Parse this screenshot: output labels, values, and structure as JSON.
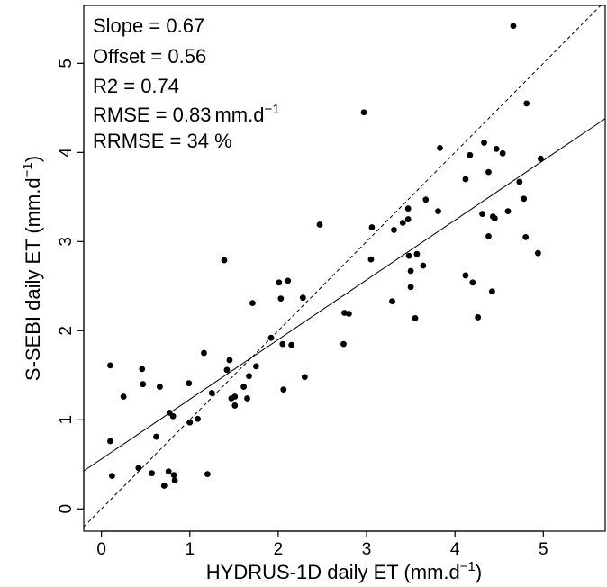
{
  "chart_data": {
    "type": "scatter",
    "xlabel": "HYDRUS-1D daily ET (mm.d",
    "xlabel_sup": "−1",
    "xlabel_tail": ")",
    "ylabel": "S-SEBI daily ET (mm.d",
    "ylabel_sup": "−1",
    "ylabel_tail": ")",
    "xlim": [
      -0.2,
      5.7
    ],
    "ylim": [
      -0.25,
      5.65
    ],
    "x_ticks": [
      "0",
      "1",
      "2",
      "3",
      "4",
      "5"
    ],
    "y_ticks": [
      "0",
      "1",
      "2",
      "3",
      "4",
      "5"
    ],
    "grid": false,
    "stats": {
      "slope": "Slope = 0.67",
      "offset": "Offset = 0.56",
      "r2": "R2 = 0.74",
      "rmse": "RMSE = 0.83",
      "rmse_unit": "mm.d",
      "rmse_sup": "−1",
      "rrmse": "RRMSE = 34 %"
    },
    "fit_line": {
      "slope": 0.67,
      "offset": 0.56,
      "style": "solid"
    },
    "one_to_one_line": {
      "slope": 1,
      "offset": 0,
      "style": "dashed"
    },
    "points": [
      {
        "x": 0.1,
        "y": 1.61
      },
      {
        "x": 0.1,
        "y": 0.76
      },
      {
        "x": 0.12,
        "y": 0.37
      },
      {
        "x": 0.25,
        "y": 1.26
      },
      {
        "x": 0.42,
        "y": 0.46
      },
      {
        "x": 0.46,
        "y": 1.57
      },
      {
        "x": 0.47,
        "y": 1.4
      },
      {
        "x": 0.57,
        "y": 0.4
      },
      {
        "x": 0.62,
        "y": 0.81
      },
      {
        "x": 0.66,
        "y": 1.37
      },
      {
        "x": 0.71,
        "y": 0.26
      },
      {
        "x": 0.76,
        "y": 0.42
      },
      {
        "x": 0.77,
        "y": 1.08
      },
      {
        "x": 0.81,
        "y": 1.04
      },
      {
        "x": 0.82,
        "y": 0.38
      },
      {
        "x": 0.83,
        "y": 0.32
      },
      {
        "x": 0.99,
        "y": 1.41
      },
      {
        "x": 1.0,
        "y": 0.97
      },
      {
        "x": 1.09,
        "y": 1.01
      },
      {
        "x": 1.16,
        "y": 1.75
      },
      {
        "x": 1.2,
        "y": 0.39
      },
      {
        "x": 1.25,
        "y": 1.3
      },
      {
        "x": 1.39,
        "y": 2.79
      },
      {
        "x": 1.42,
        "y": 1.56
      },
      {
        "x": 1.45,
        "y": 1.67
      },
      {
        "x": 1.47,
        "y": 1.24
      },
      {
        "x": 1.51,
        "y": 1.16
      },
      {
        "x": 1.51,
        "y": 1.26
      },
      {
        "x": 1.61,
        "y": 1.37
      },
      {
        "x": 1.65,
        "y": 1.24
      },
      {
        "x": 1.67,
        "y": 1.49
      },
      {
        "x": 1.71,
        "y": 2.31
      },
      {
        "x": 1.75,
        "y": 1.6
      },
      {
        "x": 1.92,
        "y": 1.92
      },
      {
        "x": 2.01,
        "y": 2.54
      },
      {
        "x": 2.03,
        "y": 2.36
      },
      {
        "x": 2.05,
        "y": 1.85
      },
      {
        "x": 2.06,
        "y": 1.34
      },
      {
        "x": 2.11,
        "y": 2.56
      },
      {
        "x": 2.15,
        "y": 1.84
      },
      {
        "x": 2.28,
        "y": 2.37
      },
      {
        "x": 2.3,
        "y": 1.48
      },
      {
        "x": 2.47,
        "y": 3.19
      },
      {
        "x": 2.74,
        "y": 1.85
      },
      {
        "x": 2.75,
        "y": 2.2
      },
      {
        "x": 2.8,
        "y": 2.19
      },
      {
        "x": 2.97,
        "y": 4.45
      },
      {
        "x": 3.05,
        "y": 2.8
      },
      {
        "x": 3.06,
        "y": 3.16
      },
      {
        "x": 3.29,
        "y": 2.33
      },
      {
        "x": 3.31,
        "y": 3.13
      },
      {
        "x": 3.41,
        "y": 3.21
      },
      {
        "x": 3.47,
        "y": 3.25
      },
      {
        "x": 3.47,
        "y": 3.37
      },
      {
        "x": 3.48,
        "y": 2.84
      },
      {
        "x": 3.5,
        "y": 2.67
      },
      {
        "x": 3.5,
        "y": 2.49
      },
      {
        "x": 3.55,
        "y": 2.14
      },
      {
        "x": 3.57,
        "y": 2.86
      },
      {
        "x": 3.64,
        "y": 2.73
      },
      {
        "x": 3.67,
        "y": 3.47
      },
      {
        "x": 3.81,
        "y": 3.34
      },
      {
        "x": 3.83,
        "y": 4.05
      },
      {
        "x": 4.12,
        "y": 3.7
      },
      {
        "x": 4.12,
        "y": 2.62
      },
      {
        "x": 4.17,
        "y": 3.97
      },
      {
        "x": 4.2,
        "y": 2.54
      },
      {
        "x": 4.26,
        "y": 2.15
      },
      {
        "x": 4.31,
        "y": 3.31
      },
      {
        "x": 4.33,
        "y": 4.11
      },
      {
        "x": 4.38,
        "y": 3.78
      },
      {
        "x": 4.38,
        "y": 3.06
      },
      {
        "x": 4.42,
        "y": 2.44
      },
      {
        "x": 4.43,
        "y": 3.28
      },
      {
        "x": 4.45,
        "y": 3.26
      },
      {
        "x": 4.47,
        "y": 4.04
      },
      {
        "x": 4.54,
        "y": 3.99
      },
      {
        "x": 4.6,
        "y": 3.34
      },
      {
        "x": 4.66,
        "y": 5.42
      },
      {
        "x": 4.73,
        "y": 3.67
      },
      {
        "x": 4.78,
        "y": 3.48
      },
      {
        "x": 4.8,
        "y": 3.05
      },
      {
        "x": 4.81,
        "y": 4.55
      },
      {
        "x": 4.94,
        "y": 2.87
      },
      {
        "x": 4.97,
        "y": 3.93
      }
    ]
  }
}
